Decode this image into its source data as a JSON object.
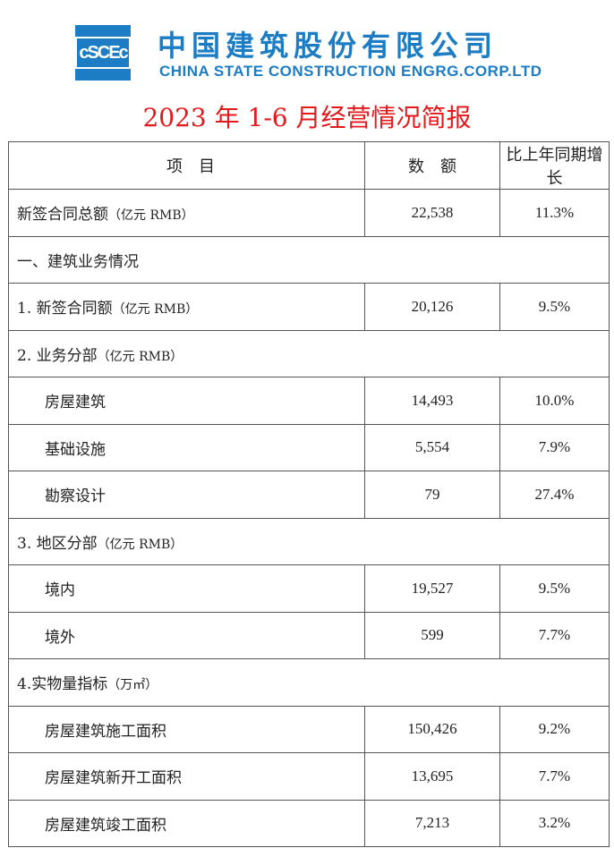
{
  "logo": {
    "mark": "cSCEc",
    "cn_name": "中国建筑股份有限公司",
    "en_name": "CHINA STATE CONSTRUCTION ENGRG.CORP.LTD",
    "color": "#1c7cc4"
  },
  "title": "2023 年 1-6 月经营情况简报",
  "title_color": "#e3191b",
  "table": {
    "headers": [
      "项　目",
      "数　额",
      "比上年同期增长"
    ],
    "rows": [
      {
        "label": "新签合同总额",
        "unit": "（亿元 RMB）",
        "value": "22,538",
        "growth": "11.3%"
      },
      {
        "label": "一、建筑业务情况",
        "unit": "",
        "value": null,
        "growth": null
      },
      {
        "label": "1.  新签合同额",
        "unit": "（亿元 RMB）",
        "value": "20,126",
        "growth": "9.5%"
      },
      {
        "label": "2.  业务分部",
        "unit": "（亿元 RMB）",
        "value": null,
        "growth": null
      },
      {
        "label": "房屋建筑",
        "unit": "",
        "value": "14,493",
        "growth": "10.0%",
        "sub": true
      },
      {
        "label": "基础设施",
        "unit": "",
        "value": "5,554",
        "growth": "7.9%",
        "sub": true
      },
      {
        "label": "勘察设计",
        "unit": "",
        "value": "79",
        "growth": "27.4%",
        "sub": true
      },
      {
        "label": "3.  地区分部",
        "unit": "（亿元 RMB）",
        "value": null,
        "growth": null
      },
      {
        "label": "境内",
        "unit": "",
        "value": "19,527",
        "growth": "9.5%",
        "sub": true
      },
      {
        "label": "境外",
        "unit": "",
        "value": "599",
        "growth": "7.7%",
        "sub": true
      },
      {
        "label": "4.实物量指标",
        "unit": "（万㎡）",
        "value": null,
        "growth": null
      },
      {
        "label": "房屋建筑施工面积",
        "unit": "",
        "value": "150,426",
        "growth": "9.2%",
        "sub": true
      },
      {
        "label": "房屋建筑新开工面积",
        "unit": "",
        "value": "13,695",
        "growth": "7.7%",
        "sub": true
      },
      {
        "label": "房屋建筑竣工面积",
        "unit": "",
        "value": "7,213",
        "growth": "3.2%",
        "sub": true
      }
    ]
  }
}
